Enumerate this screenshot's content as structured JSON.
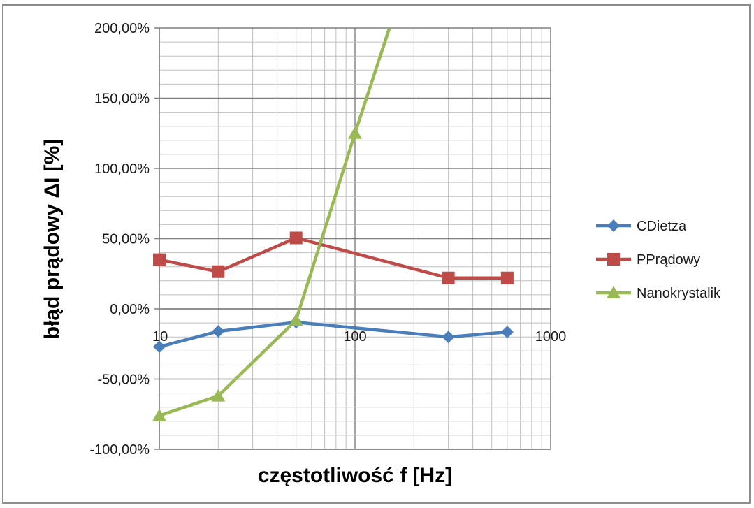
{
  "chart_data": {
    "type": "line",
    "xlabel": "częstotliwość f [Hz]",
    "ylabel": "błąd prądowy ΔI [%]",
    "x_scale": "log",
    "xlim": [
      10,
      1000
    ],
    "ylim": [
      -1.0,
      2.0
    ],
    "grid": true,
    "legend_position": "right",
    "x_tick_labels": [
      "10",
      "100",
      "1000"
    ],
    "x_ticks": [
      10,
      100,
      1000
    ],
    "y_ticks": [
      -1.0,
      -0.5,
      0.0,
      0.5,
      1.0,
      1.5,
      2.0
    ],
    "y_tick_labels": [
      "-100,00%",
      "-50,00%",
      "0,00%",
      "50,00%",
      "100,00%",
      "150,00%",
      "200,00%"
    ],
    "series": [
      {
        "name": "CDietza",
        "color": "#4a7ebb",
        "marker": "diamond",
        "x": [
          10,
          20,
          50,
          300,
          600
        ],
        "y": [
          -0.27,
          -0.16,
          -0.095,
          -0.2,
          -0.165
        ]
      },
      {
        "name": "PPrądowy",
        "color": "#be4b48",
        "marker": "square",
        "x": [
          10,
          20,
          50,
          300,
          600
        ],
        "y": [
          0.35,
          0.265,
          0.505,
          0.22,
          0.22
        ]
      },
      {
        "name": "Nanokrystalik",
        "color": "#98b954",
        "marker": "triangle",
        "x": [
          10,
          20,
          50,
          100,
          150
        ],
        "y": [
          -0.76,
          -0.62,
          -0.08,
          1.25,
          2.0
        ]
      }
    ]
  }
}
